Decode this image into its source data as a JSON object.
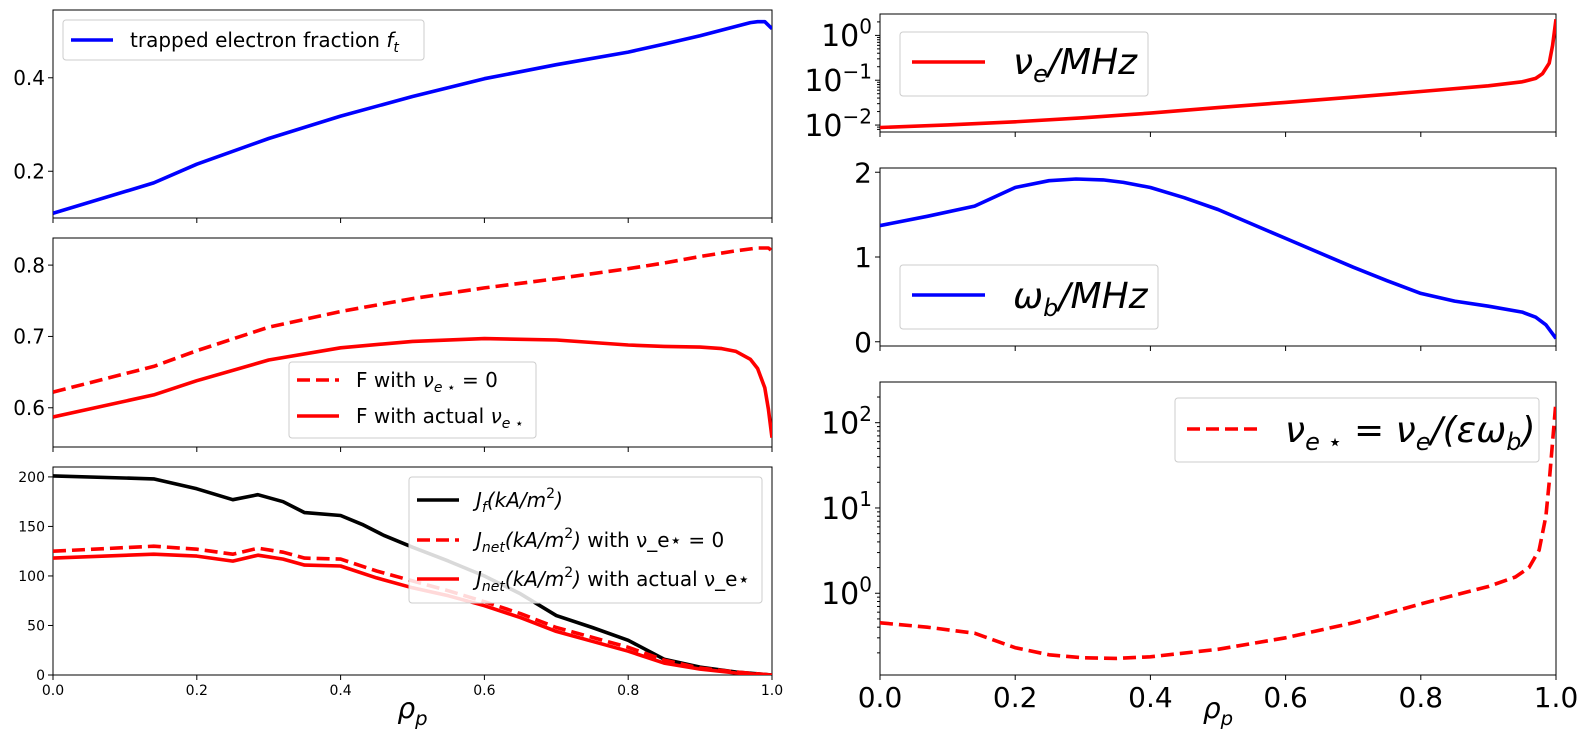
{
  "chart_data": [
    {
      "id": "ft",
      "type": "line",
      "xlim": [
        0,
        1
      ],
      "ylim": [
        0.1,
        0.545
      ],
      "yscale": "linear",
      "yticks": [
        {
          "v": 0.2,
          "t": "0.2"
        },
        {
          "v": 0.4,
          "t": "0.4"
        }
      ],
      "xticks": [
        0,
        0.2,
        0.4,
        0.6,
        0.8,
        1.0
      ],
      "xticklabels": [],
      "xlabel": "",
      "legend_loc": "upper-left",
      "series": [
        {
          "name": "trapped electron fraction f_t",
          "label_text": "trapped electron fraction ",
          "label_sym": "f",
          "label_sub": "t",
          "color": "#0000ff",
          "dash": "solid",
          "x": [
            0,
            0.14,
            0.2,
            0.3,
            0.4,
            0.5,
            0.6,
            0.7,
            0.8,
            0.85,
            0.9,
            0.95,
            0.97,
            0.98,
            0.99,
            1.0
          ],
          "y": [
            0.11,
            0.175,
            0.215,
            0.27,
            0.318,
            0.36,
            0.398,
            0.428,
            0.455,
            0.472,
            0.49,
            0.51,
            0.518,
            0.52,
            0.52,
            0.505
          ]
        }
      ]
    },
    {
      "id": "F",
      "type": "line",
      "xlim": [
        0,
        1
      ],
      "ylim": [
        0.545,
        0.838
      ],
      "yscale": "linear",
      "yticks": [
        {
          "v": 0.6,
          "t": "0.6"
        },
        {
          "v": 0.7,
          "t": "0.7"
        },
        {
          "v": 0.8,
          "t": "0.8"
        }
      ],
      "xticks": [
        0,
        0.2,
        0.4,
        0.6,
        0.8,
        1.0
      ],
      "xticklabels": [],
      "xlabel": "",
      "legend_loc": "lower-center",
      "series": [
        {
          "name": "F with nu_e* = 0",
          "label_text": "F  with ",
          "label_sym": "ν",
          "label_sub": "e ⋆",
          "label_suffix": " = 0",
          "color": "#ff0000",
          "dash": "dashed",
          "x": [
            0,
            0.14,
            0.2,
            0.3,
            0.4,
            0.5,
            0.6,
            0.7,
            0.8,
            0.85,
            0.9,
            0.95,
            0.98,
            0.995,
            1.0
          ],
          "y": [
            0.622,
            0.658,
            0.68,
            0.713,
            0.735,
            0.753,
            0.768,
            0.781,
            0.795,
            0.803,
            0.812,
            0.82,
            0.824,
            0.824,
            0.82
          ]
        },
        {
          "name": "F with actual nu_e*",
          "label_text": "F with actual ",
          "label_sym": "ν",
          "label_sub": "e ⋆",
          "label_suffix": "",
          "color": "#ff0000",
          "dash": "solid",
          "x": [
            0,
            0.14,
            0.2,
            0.3,
            0.4,
            0.5,
            0.6,
            0.7,
            0.8,
            0.85,
            0.9,
            0.93,
            0.95,
            0.97,
            0.98,
            0.99,
            0.995,
            1.0
          ],
          "y": [
            0.587,
            0.618,
            0.638,
            0.667,
            0.684,
            0.693,
            0.697,
            0.695,
            0.688,
            0.686,
            0.685,
            0.683,
            0.679,
            0.668,
            0.655,
            0.628,
            0.598,
            0.558
          ]
        }
      ]
    },
    {
      "id": "J",
      "type": "line",
      "xlim": [
        0,
        1
      ],
      "ylim": [
        0,
        210
      ],
      "yscale": "linear",
      "yticks": [
        {
          "v": 0,
          "t": "0"
        },
        {
          "v": 50,
          "t": "50"
        },
        {
          "v": 100,
          "t": "100"
        },
        {
          "v": 150,
          "t": "150"
        },
        {
          "v": 200,
          "t": "200"
        }
      ],
      "xticks": [
        0,
        0.2,
        0.4,
        0.6,
        0.8,
        1.0
      ],
      "xticklabels": [
        "0.0",
        "0.2",
        "0.4",
        "0.6",
        "0.8",
        "1.0"
      ],
      "xlabel": "ρ",
      "xlabel_sub": "p",
      "legend_loc": "upper-right",
      "series": [
        {
          "name": "J_f (kA/m^2)",
          "color": "#000000",
          "dash": "solid",
          "label_parts": [
            "J",
            "f",
            "(kA/m",
            "2",
            ")",
            ""
          ],
          "x": [
            0,
            0.14,
            0.2,
            0.25,
            0.285,
            0.32,
            0.35,
            0.4,
            0.43,
            0.46,
            0.5,
            0.55,
            0.6,
            0.65,
            0.7,
            0.75,
            0.8,
            0.85,
            0.9,
            0.95,
            1.0
          ],
          "y": [
            201,
            198,
            188,
            177,
            182,
            175,
            164,
            161,
            152,
            141,
            129,
            115,
            100,
            82,
            60,
            48,
            35,
            16,
            8,
            3,
            0
          ]
        },
        {
          "name": "J_net (kA/m^2) with nu_e* = 0",
          "color": "#ff0000",
          "dash": "dashed",
          "label_parts": [
            "J",
            "net",
            "(kA/m",
            "2",
            ")",
            " with ν_e⋆ = 0"
          ],
          "x": [
            0,
            0.14,
            0.2,
            0.25,
            0.285,
            0.32,
            0.35,
            0.4,
            0.45,
            0.5,
            0.55,
            0.6,
            0.65,
            0.7,
            0.75,
            0.8,
            0.85,
            0.9,
            0.95,
            1.0
          ],
          "y": [
            125,
            130,
            127,
            122,
            128,
            124,
            118,
            117,
            105,
            95,
            85,
            74,
            62,
            48,
            38,
            28,
            15,
            7,
            3,
            0
          ]
        },
        {
          "name": "J_net (kA/m^2) with actual nu_e*",
          "color": "#ff0000",
          "dash": "solid",
          "label_parts": [
            "J",
            "net",
            "(kA/m",
            "2",
            ")",
            " with actual ν_e⋆"
          ],
          "x": [
            0,
            0.14,
            0.2,
            0.25,
            0.285,
            0.32,
            0.35,
            0.4,
            0.45,
            0.5,
            0.55,
            0.6,
            0.65,
            0.7,
            0.75,
            0.8,
            0.85,
            0.9,
            0.95,
            1.0
          ],
          "y": [
            118,
            122,
            120,
            115,
            121,
            117,
            111,
            110,
            98,
            88,
            80,
            70,
            58,
            44,
            34,
            24,
            12,
            6,
            2,
            0
          ]
        }
      ]
    },
    {
      "id": "nue",
      "type": "line",
      "xlim": [
        0,
        1
      ],
      "ylim": [
        0.007,
        3.0
      ],
      "yscale": "log",
      "yticks": [
        {
          "v": 0.01,
          "t": "10",
          "e": "−2"
        },
        {
          "v": 0.1,
          "t": "10",
          "e": "−1"
        },
        {
          "v": 1,
          "t": "10",
          "e": "0"
        }
      ],
      "xticks": [
        0,
        0.2,
        0.4,
        0.6,
        0.8,
        1.0
      ],
      "xticklabels": [],
      "xlabel": "",
      "legend_loc": "upper-left",
      "series": [
        {
          "name": "nu_e / MHz",
          "label_sym": "ν",
          "label_sub": "e",
          "label_suffix": "/MHz",
          "color": "#ff0000",
          "dash": "solid",
          "x": [
            0,
            0.1,
            0.2,
            0.3,
            0.4,
            0.5,
            0.6,
            0.7,
            0.8,
            0.9,
            0.95,
            0.97,
            0.98,
            0.99,
            0.995,
            1.0
          ],
          "y": [
            0.0088,
            0.0101,
            0.0118,
            0.0145,
            0.0185,
            0.0245,
            0.032,
            0.042,
            0.056,
            0.075,
            0.092,
            0.11,
            0.14,
            0.24,
            0.6,
            2.3
          ]
        }
      ]
    },
    {
      "id": "wb",
      "type": "line",
      "xlim": [
        0,
        1
      ],
      "ylim": [
        -0.05,
        2.05
      ],
      "yscale": "linear",
      "yticks": [
        {
          "v": 0,
          "t": "0"
        },
        {
          "v": 1,
          "t": "1"
        },
        {
          "v": 2,
          "t": "2"
        }
      ],
      "xticks": [
        0,
        0.2,
        0.4,
        0.6,
        0.8,
        1.0
      ],
      "xticklabels": [],
      "xlabel": "",
      "legend_loc": "lower-left",
      "series": [
        {
          "name": "omega_b / MHz",
          "label_sym": "ω",
          "label_sub": "b",
          "label_suffix": "/MHz",
          "color": "#0000ff",
          "dash": "solid",
          "x": [
            0,
            0.07,
            0.14,
            0.2,
            0.25,
            0.29,
            0.33,
            0.36,
            0.4,
            0.45,
            0.5,
            0.6,
            0.7,
            0.75,
            0.8,
            0.85,
            0.9,
            0.95,
            0.97,
            0.985,
            1.0
          ],
          "y": [
            1.37,
            1.48,
            1.6,
            1.82,
            1.9,
            1.92,
            1.91,
            1.88,
            1.82,
            1.7,
            1.56,
            1.22,
            0.88,
            0.72,
            0.57,
            0.48,
            0.42,
            0.35,
            0.29,
            0.2,
            0.04
          ]
        }
      ]
    },
    {
      "id": "nustar",
      "type": "line",
      "xlim": [
        0,
        1
      ],
      "ylim": [
        0.11,
        300
      ],
      "yscale": "log",
      "yticks": [
        {
          "v": 1,
          "t": "10",
          "e": "0"
        },
        {
          "v": 10,
          "t": "10",
          "e": "1"
        },
        {
          "v": 100,
          "t": "10",
          "e": "2"
        }
      ],
      "xticks": [
        0,
        0.2,
        0.4,
        0.6,
        0.8,
        1.0
      ],
      "xticklabels": [
        "0.0",
        "0.2",
        "0.4",
        "0.6",
        "0.8",
        "1.0"
      ],
      "xlabel": "ρ",
      "xlabel_sub": "p",
      "legend_loc": "upper-right",
      "series": [
        {
          "name": "nu_e* = nu_e / (epsilon omega_b)",
          "color": "#ff0000",
          "dash": "dashed",
          "x": [
            0,
            0.07,
            0.14,
            0.2,
            0.25,
            0.3,
            0.35,
            0.4,
            0.5,
            0.6,
            0.7,
            0.8,
            0.9,
            0.94,
            0.96,
            0.975,
            0.985,
            0.99,
            0.995,
            1.0
          ],
          "y": [
            0.45,
            0.4,
            0.34,
            0.23,
            0.19,
            0.175,
            0.172,
            0.18,
            0.22,
            0.3,
            0.45,
            0.75,
            1.2,
            1.55,
            2.0,
            3.2,
            8,
            20,
            60,
            180
          ]
        }
      ]
    }
  ]
}
